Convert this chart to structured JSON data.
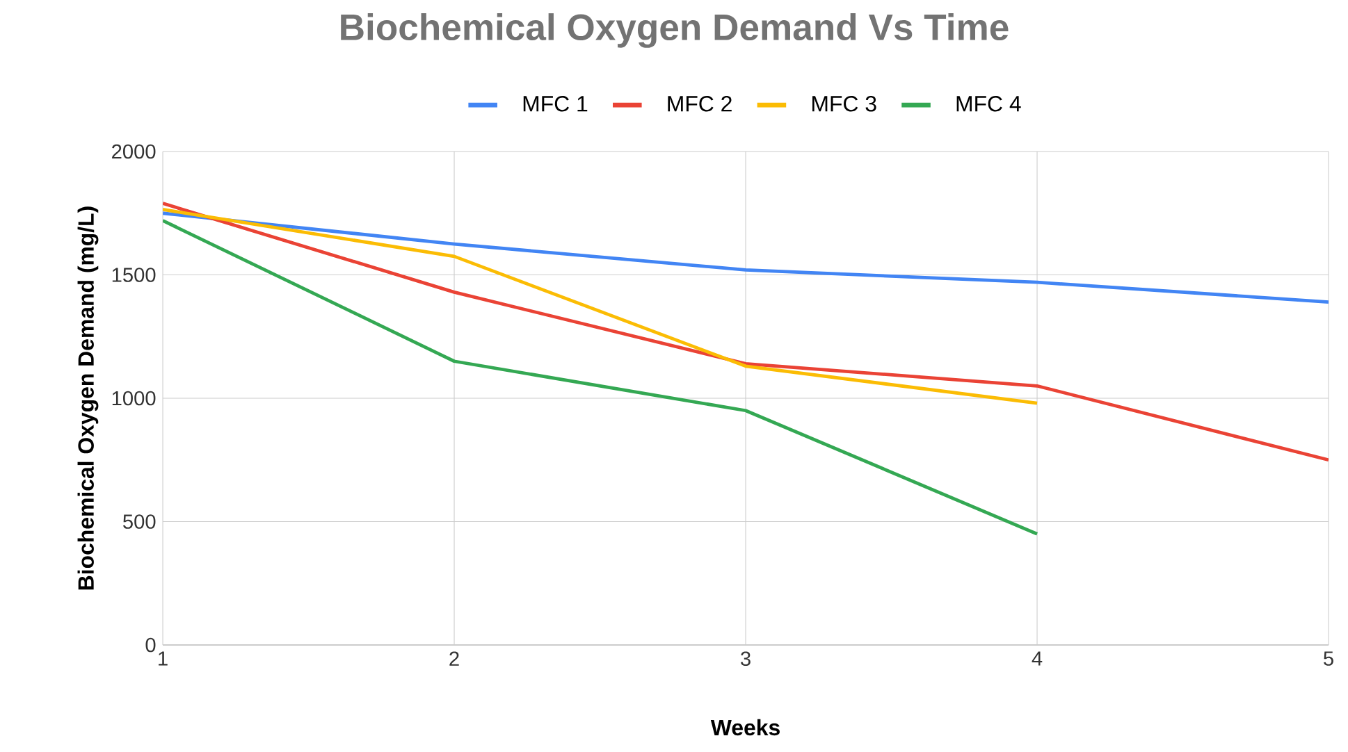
{
  "chart_data": {
    "type": "line",
    "title": "Biochemical Oxygen Demand Vs Time",
    "xlabel": "Weeks",
    "ylabel": "Biochemical Oxygen Demand (mg/L)",
    "x": [
      1,
      2,
      3,
      4,
      5
    ],
    "series": [
      {
        "name": "MFC 1",
        "color": "#4285f4",
        "values": [
          1750,
          1625,
          1520,
          1470,
          1390
        ]
      },
      {
        "name": "MFC 2",
        "color": "#ea4335",
        "values": [
          1790,
          1430,
          1140,
          1050,
          750
        ]
      },
      {
        "name": "MFC 3",
        "color": "#fbbc04",
        "values": [
          1765,
          1575,
          1130,
          980,
          null
        ]
      },
      {
        "name": "MFC 4",
        "color": "#34a853",
        "values": [
          1720,
          1150,
          950,
          450,
          null
        ]
      }
    ],
    "xlim": [
      1,
      5
    ],
    "xticks": [
      1,
      2,
      3,
      4,
      5
    ],
    "ylim": [
      0,
      2000
    ],
    "yticks": [
      0,
      500,
      1000,
      1500,
      2000
    ],
    "grid": true,
    "legend": "top",
    "marker": "none",
    "line_style": "solid"
  }
}
